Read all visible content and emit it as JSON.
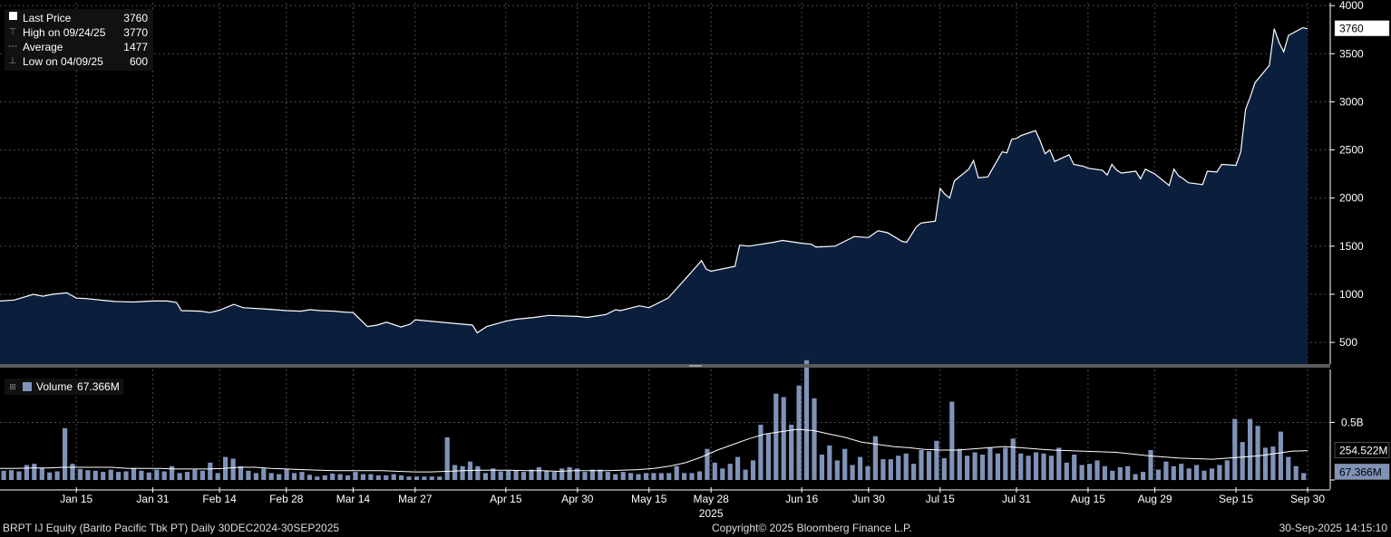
{
  "chart_data": {
    "type": "area",
    "legend": {
      "rows": [
        {
          "icon": "white-square-icon",
          "label": "Last Price",
          "value": "3760"
        },
        {
          "icon": "high-marker-icon",
          "label": "High on 09/24/25",
          "value": "3770"
        },
        {
          "icon": "average-marker-icon",
          "label": "Average",
          "value": "1477"
        },
        {
          "icon": "low-marker-icon",
          "label": "Low on 04/09/25",
          "value": "600"
        }
      ]
    },
    "price_axis": {
      "ylim": [
        275,
        4030
      ],
      "ticks": [
        "500",
        "1000",
        "1500",
        "2000",
        "2500",
        "3000",
        "3500",
        "4000"
      ],
      "last_label": "3760"
    },
    "price_series": [
      [
        "2024-12-30",
        930
      ],
      [
        "2025-01-02",
        940
      ],
      [
        "2025-01-06",
        1000
      ],
      [
        "2025-01-08",
        980
      ],
      [
        "2025-01-10",
        1000
      ],
      [
        "2025-01-13",
        1015
      ],
      [
        "2025-01-15",
        960
      ],
      [
        "2025-01-17",
        955
      ],
      [
        "2025-01-21",
        935
      ],
      [
        "2025-01-23",
        925
      ],
      [
        "2025-01-27",
        920
      ],
      [
        "2025-01-31",
        930
      ],
      [
        "2025-02-03",
        930
      ],
      [
        "2025-02-05",
        915
      ],
      [
        "2025-02-06",
        830
      ],
      [
        "2025-02-10",
        825
      ],
      [
        "2025-02-12",
        810
      ],
      [
        "2025-02-14",
        835
      ],
      [
        "2025-02-17",
        895
      ],
      [
        "2025-02-19",
        860
      ],
      [
        "2025-02-24",
        845
      ],
      [
        "2025-02-28",
        830
      ],
      [
        "2025-03-03",
        825
      ],
      [
        "2025-03-05",
        840
      ],
      [
        "2025-03-07",
        830
      ],
      [
        "2025-03-10",
        825
      ],
      [
        "2025-03-12",
        815
      ],
      [
        "2025-03-14",
        810
      ],
      [
        "2025-03-17",
        665
      ],
      [
        "2025-03-19",
        680
      ],
      [
        "2025-03-21",
        710
      ],
      [
        "2025-03-24",
        660
      ],
      [
        "2025-03-26",
        690
      ],
      [
        "2025-03-27",
        735
      ],
      [
        "2025-04-08",
        680
      ],
      [
        "2025-04-09",
        600
      ],
      [
        "2025-04-11",
        665
      ],
      [
        "2025-04-15",
        720
      ],
      [
        "2025-04-17",
        740
      ],
      [
        "2025-04-21",
        760
      ],
      [
        "2025-04-24",
        780
      ],
      [
        "2025-04-30",
        770
      ],
      [
        "2025-05-02",
        760
      ],
      [
        "2025-05-06",
        790
      ],
      [
        "2025-05-08",
        840
      ],
      [
        "2025-05-09",
        830
      ],
      [
        "2025-05-13",
        880
      ],
      [
        "2025-05-15",
        860
      ],
      [
        "2025-05-19",
        960
      ],
      [
        "2025-05-21",
        1070
      ],
      [
        "2025-05-23",
        1180
      ],
      [
        "2025-05-26",
        1350
      ],
      [
        "2025-05-27",
        1260
      ],
      [
        "2025-05-28",
        1240
      ],
      [
        "2025-06-02",
        1290
      ],
      [
        "2025-06-03",
        1510
      ],
      [
        "2025-06-05",
        1500
      ],
      [
        "2025-06-10",
        1540
      ],
      [
        "2025-06-12",
        1560
      ],
      [
        "2025-06-16",
        1530
      ],
      [
        "2025-06-18",
        1520
      ],
      [
        "2025-06-19",
        1490
      ],
      [
        "2025-06-23",
        1500
      ],
      [
        "2025-06-25",
        1550
      ],
      [
        "2025-06-27",
        1600
      ],
      [
        "2025-06-30",
        1590
      ],
      [
        "2025-07-02",
        1660
      ],
      [
        "2025-07-04",
        1640
      ],
      [
        "2025-07-07",
        1550
      ],
      [
        "2025-07-08",
        1540
      ],
      [
        "2025-07-10",
        1700
      ],
      [
        "2025-07-11",
        1740
      ],
      [
        "2025-07-14",
        1760
      ],
      [
        "2025-07-15",
        2100
      ],
      [
        "2025-07-16",
        2040
      ],
      [
        "2025-07-17",
        2000
      ],
      [
        "2025-07-18",
        2180
      ],
      [
        "2025-07-21",
        2300
      ],
      [
        "2025-07-22",
        2390
      ],
      [
        "2025-07-23",
        2210
      ],
      [
        "2025-07-25",
        2220
      ],
      [
        "2025-07-28",
        2480
      ],
      [
        "2025-07-29",
        2470
      ],
      [
        "2025-07-30",
        2610
      ],
      [
        "2025-07-31",
        2620
      ],
      [
        "2025-08-01",
        2650
      ],
      [
        "2025-08-04",
        2700
      ],
      [
        "2025-08-05",
        2590
      ],
      [
        "2025-08-06",
        2460
      ],
      [
        "2025-08-07",
        2500
      ],
      [
        "2025-08-08",
        2380
      ],
      [
        "2025-08-11",
        2450
      ],
      [
        "2025-08-12",
        2350
      ],
      [
        "2025-08-14",
        2330
      ],
      [
        "2025-08-15",
        2310
      ],
      [
        "2025-08-18",
        2290
      ],
      [
        "2025-08-19",
        2240
      ],
      [
        "2025-08-20",
        2350
      ],
      [
        "2025-08-21",
        2290
      ],
      [
        "2025-08-22",
        2260
      ],
      [
        "2025-08-25",
        2280
      ],
      [
        "2025-08-26",
        2200
      ],
      [
        "2025-08-27",
        2300
      ],
      [
        "2025-08-29",
        2250
      ],
      [
        "2025-09-01",
        2130
      ],
      [
        "2025-09-02",
        2300
      ],
      [
        "2025-09-03",
        2230
      ],
      [
        "2025-09-04",
        2200
      ],
      [
        "2025-09-05",
        2160
      ],
      [
        "2025-09-08",
        2140
      ],
      [
        "2025-09-09",
        2280
      ],
      [
        "2025-09-11",
        2270
      ],
      [
        "2025-09-12",
        2350
      ],
      [
        "2025-09-15",
        2340
      ],
      [
        "2025-09-16",
        2480
      ],
      [
        "2025-09-17",
        2920
      ],
      [
        "2025-09-18",
        3050
      ],
      [
        "2025-09-19",
        3200
      ],
      [
        "2025-09-22",
        3380
      ],
      [
        "2025-09-23",
        3760
      ],
      [
        "2025-09-24",
        3620
      ],
      [
        "2025-09-25",
        3520
      ],
      [
        "2025-09-26",
        3690
      ],
      [
        "2025-09-29",
        3770
      ],
      [
        "2025-09-30",
        3760
      ]
    ],
    "volume_legend": {
      "label": "Volume",
      "value": "67.366M"
    },
    "volume_axis": {
      "ylim": [
        0,
        960
      ],
      "ticks": [
        "0.5B"
      ],
      "ma_label": "254.522M",
      "last_label": "67.366M"
    },
    "volume_bars_M": [
      80,
      85,
      75,
      130,
      140,
      105,
      65,
      75,
      450,
      140,
      95,
      85,
      80,
      70,
      90,
      70,
      75,
      105,
      80,
      65,
      90,
      75,
      120,
      60,
      70,
      90,
      80,
      150,
      60,
      200,
      185,
      120,
      80,
      60,
      100,
      60,
      50,
      95,
      60,
      70,
      45,
      30,
      40,
      55,
      50,
      40,
      70,
      50,
      50,
      40,
      40,
      50,
      40,
      30,
      30,
      30,
      30,
      30,
      370,
      130,
      120,
      160,
      120,
      60,
      100,
      75,
      80,
      80,
      70,
      90,
      110,
      80,
      70,
      100,
      110,
      100,
      70,
      90,
      90,
      70,
      50,
      70,
      60,
      50,
      60,
      60,
      60,
      60,
      120,
      60,
      60,
      75,
      270,
      150,
      100,
      140,
      200,
      90,
      170,
      480,
      400,
      750,
      720,
      480,
      820,
      1040,
      710,
      220,
      300,
      170,
      270,
      130,
      200,
      120,
      380,
      180,
      180,
      210,
      230,
      140,
      260,
      250,
      340,
      190,
      680,
      270,
      210,
      240,
      220,
      280,
      230,
      280,
      360,
      230,
      210,
      240,
      230,
      210,
      280,
      150,
      220,
      130,
      140,
      170,
      120,
      80,
      110,
      120,
      50,
      70,
      260,
      90,
      160,
      120,
      140,
      100,
      130,
      80,
      100,
      130,
      170,
      530,
      330,
      530,
      470,
      280,
      290,
      420,
      200,
      120,
      60
    ],
    "volume_ma_M": [
      100,
      100,
      105,
      105,
      110,
      110,
      110,
      110,
      100,
      100,
      100,
      95,
      95,
      95,
      100,
      110,
      110,
      100,
      95,
      90,
      85,
      80,
      80,
      80,
      80,
      75,
      70,
      70,
      75,
      80,
      85,
      85,
      85,
      80,
      80,
      75,
      80,
      80,
      80,
      85,
      90,
      100,
      120,
      150,
      200,
      260,
      310,
      360,
      400,
      420,
      440,
      430,
      400,
      370,
      330,
      310,
      290,
      280,
      265,
      260,
      260,
      270,
      280,
      290,
      280,
      270,
      260,
      255,
      250,
      245,
      240,
      225,
      210,
      200,
      190,
      185,
      180,
      190,
      200,
      210,
      230,
      250,
      255
    ],
    "x_axis": {
      "dates": [
        "2025-01-15",
        "2025-01-31",
        "2025-02-14",
        "2025-02-28",
        "2025-03-14",
        "2025-03-27",
        "2025-04-15",
        "2025-04-30",
        "2025-05-15",
        "2025-05-28",
        "2025-06-16",
        "2025-06-30",
        "2025-07-15",
        "2025-07-31",
        "2025-08-15",
        "2025-08-29",
        "2025-09-15",
        "2025-09-30"
      ],
      "labels": [
        "Jan 15",
        "Jan 31",
        "Feb 14",
        "Feb 28",
        "Mar 14",
        "Mar 27",
        "Apr 15",
        "Apr 30",
        "May 15",
        "May 28",
        "Jun 16",
        "Jun 30",
        "Jul 15",
        "Jul 31",
        "Aug 15",
        "Aug 29",
        "Sep 15",
        "Sep 30"
      ],
      "year_label": "2025"
    },
    "grid": true
  },
  "footer": {
    "security": "BRPT IJ Equity (Barito Pacific Tbk PT)  Daily 30DEC2024-30SEP2025",
    "copyright": "Copyright© 2025 Bloomberg Finance L.P.",
    "timestamp": "30-Sep-2025 14:15:10"
  },
  "colors": {
    "area": "#0b1f3d",
    "line": "#ffffff",
    "volume": "#7f93b8",
    "grid": "#4a4a4a",
    "background": "#000000",
    "separator": "#5a5a5a"
  }
}
